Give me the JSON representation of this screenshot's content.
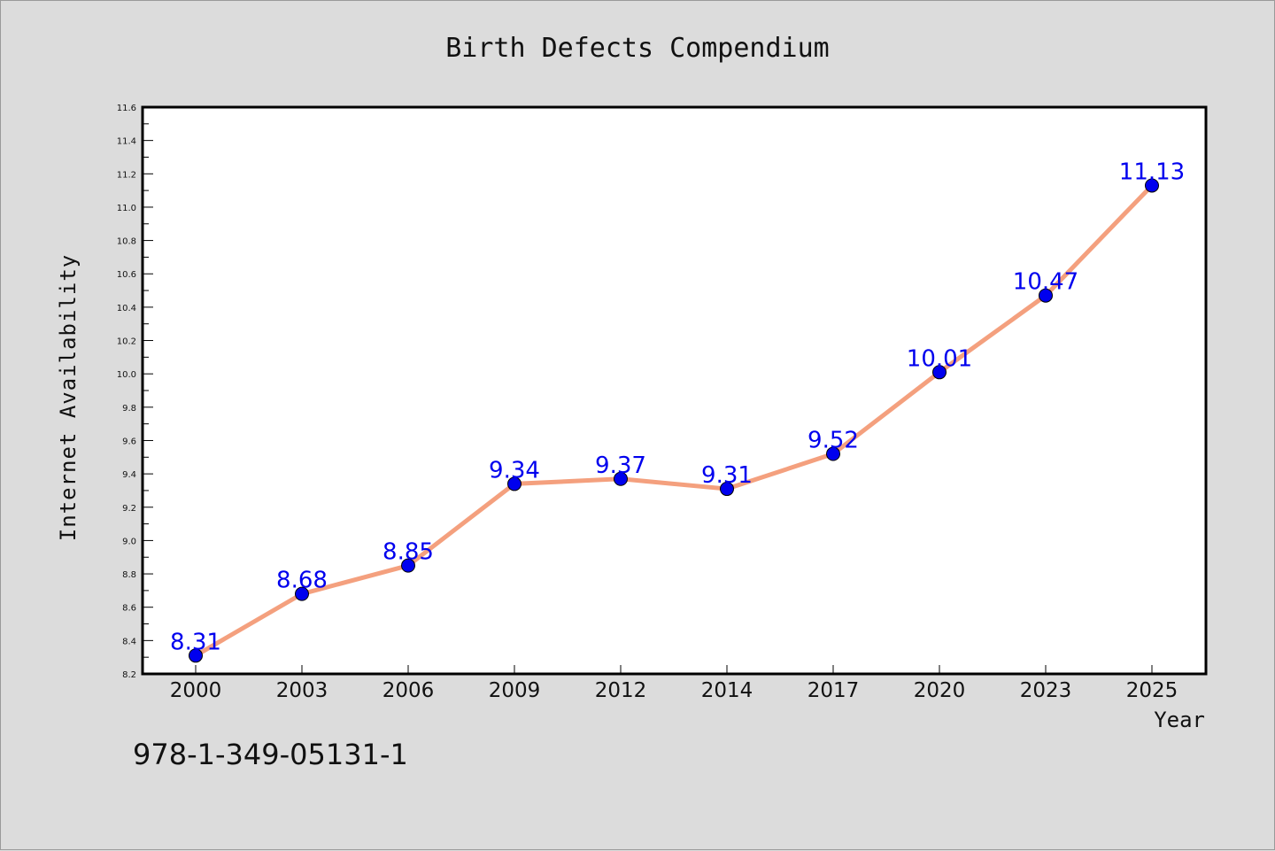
{
  "chart_data": {
    "type": "line",
    "title": "Birth Defects Compendium",
    "xlabel": "Year",
    "ylabel": "Internet Availability",
    "categories": [
      "2000",
      "2003",
      "2006",
      "2009",
      "2012",
      "2014",
      "2017",
      "2020",
      "2023",
      "2025"
    ],
    "series": [
      {
        "values": [
          8.31,
          8.68,
          8.85,
          9.34,
          9.37,
          9.31,
          9.52,
          10.01,
          10.47,
          11.13
        ]
      }
    ],
    "data_labels": [
      "8.31",
      "8.68",
      "8.85",
      "9.34",
      "9.37",
      "9.31",
      "9.52",
      "10.01",
      "10.47",
      "11.13"
    ],
    "ylim": [
      8.2,
      11.6
    ],
    "yticks": [
      "8.2",
      "8.4",
      "8.6",
      "8.8",
      "9.0",
      "9.2",
      "9.4",
      "9.6",
      "9.8",
      "10.0",
      "10.2",
      "10.4",
      "10.6",
      "10.8",
      "11.0",
      "11.2",
      "11.4",
      "11.6"
    ],
    "grid": false,
    "legend": "none",
    "colors": {
      "line": "#f4a07e",
      "marker": "#0000ee",
      "data_label": "#0000ee",
      "plot_background": "#ffffff",
      "figure_background": "#dcdcdc"
    }
  },
  "footnote": "978-1-349-05131-1"
}
